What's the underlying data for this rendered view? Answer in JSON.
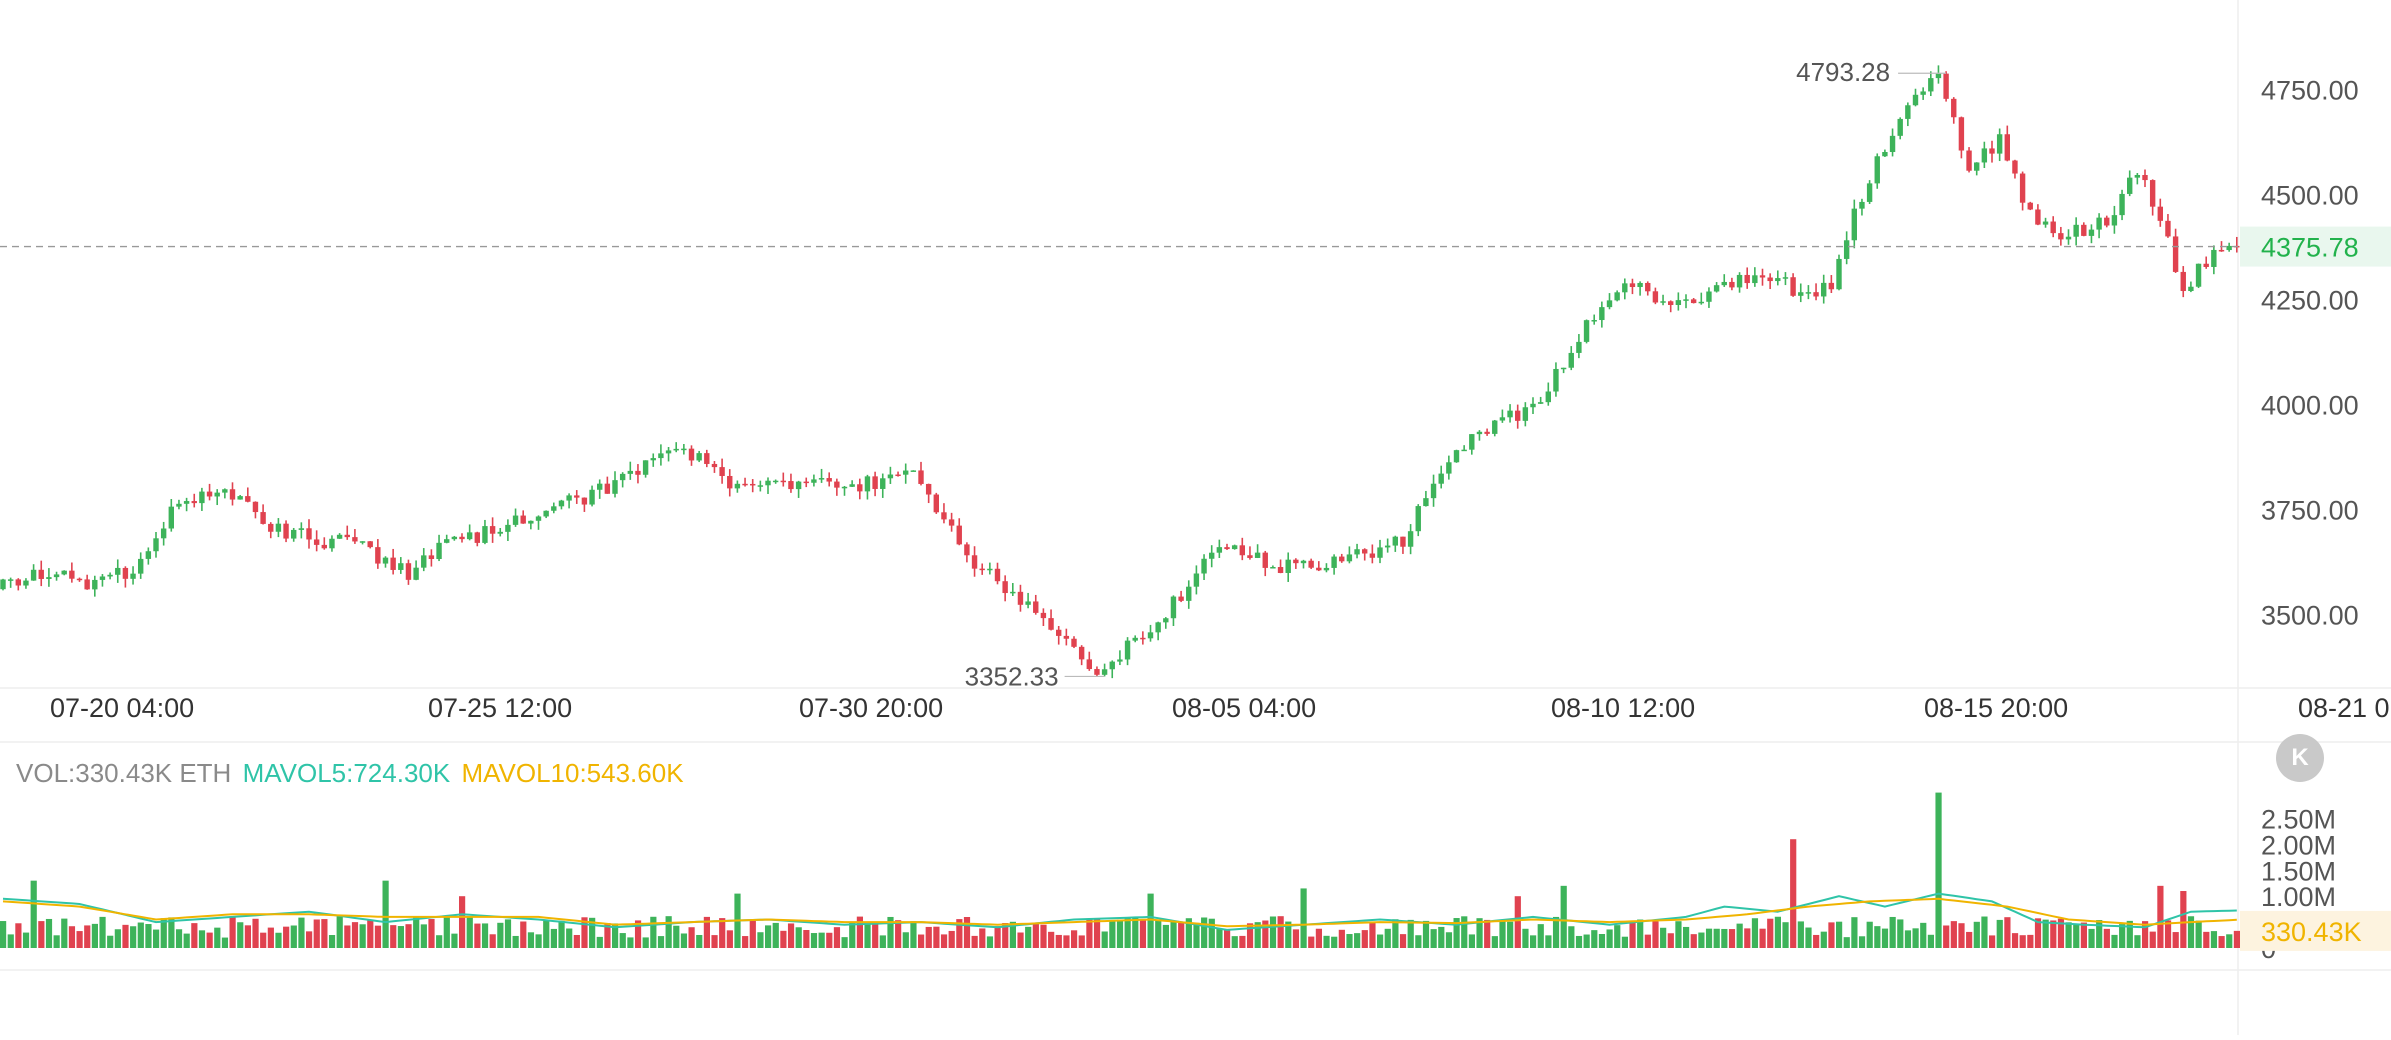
{
  "chart_data": [
    {
      "type": "candlestick",
      "title": "",
      "symbol_unit": "ETH",
      "y_ticks": [
        "4750.00",
        "4500.00",
        "4250.00",
        "4000.00",
        "3750.00",
        "3500.00"
      ],
      "y_tick_values": [
        4750,
        4500,
        4250,
        4000,
        3750,
        3500
      ],
      "ylim": [
        3320,
        4820
      ],
      "x_ticks": [
        "07-20 04:00",
        "07-25 12:00",
        "07-30 20:00",
        "08-05 04:00",
        "08-10 12:00",
        "08-15 20:00",
        "08-21 0"
      ],
      "last_price": 4375.78,
      "last_price_label": "4375.78",
      "high_label": "4793.28",
      "low_label": "3352.33",
      "colors": {
        "up": "#3db35a",
        "down": "#e0424f",
        "last_price": "#22b24c"
      },
      "waypoints": [
        [
          0,
          3560
        ],
        [
          6,
          3600
        ],
        [
          12,
          3570
        ],
        [
          18,
          3610
        ],
        [
          24,
          3770
        ],
        [
          30,
          3790
        ],
        [
          36,
          3710
        ],
        [
          42,
          3680
        ],
        [
          48,
          3660
        ],
        [
          54,
          3600
        ],
        [
          60,
          3680
        ],
        [
          66,
          3700
        ],
        [
          72,
          3760
        ],
        [
          78,
          3780
        ],
        [
          84,
          3850
        ],
        [
          90,
          3890
        ],
        [
          96,
          3820
        ],
        [
          102,
          3800
        ],
        [
          108,
          3820
        ],
        [
          114,
          3810
        ],
        [
          120,
          3850
        ],
        [
          126,
          3660
        ],
        [
          132,
          3560
        ],
        [
          138,
          3470
        ],
        [
          144,
          3360
        ],
        [
          150,
          3450
        ],
        [
          156,
          3560
        ],
        [
          160,
          3680
        ],
        [
          166,
          3620
        ],
        [
          172,
          3610
        ],
        [
          178,
          3640
        ],
        [
          184,
          3680
        ],
        [
          190,
          3870
        ],
        [
          196,
          3950
        ],
        [
          202,
          4000
        ],
        [
          208,
          4200
        ],
        [
          214,
          4290
        ],
        [
          220,
          4230
        ],
        [
          226,
          4290
        ],
        [
          232,
          4310
        ],
        [
          236,
          4260
        ],
        [
          240,
          4290
        ],
        [
          244,
          4500
        ],
        [
          250,
          4720
        ],
        [
          254,
          4780
        ],
        [
          258,
          4550
        ],
        [
          262,
          4630
        ],
        [
          266,
          4450
        ],
        [
          270,
          4400
        ],
        [
          276,
          4430
        ],
        [
          280,
          4560
        ],
        [
          283,
          4440
        ],
        [
          286,
          4270
        ],
        [
          290,
          4360
        ],
        [
          292,
          4376
        ]
      ],
      "highs_marked": {
        "index": 254,
        "value": 4793.28
      },
      "lows_marked": {
        "index": 144,
        "value": 3352.33
      }
    },
    {
      "type": "bar",
      "title": "",
      "legend": [
        {
          "label": "VOL:330.43K ETH",
          "color": "#8a8a8a"
        },
        {
          "label": "MAVOL5:724.30K",
          "color": "#2fc4a8"
        },
        {
          "label": "MAVOL10:543.60K",
          "color": "#f0b400"
        }
      ],
      "y_ticks": [
        "2.50M",
        "2.00M",
        "1.50M",
        "1.00M",
        "0"
      ],
      "y_tick_values": [
        2500000,
        2000000,
        1500000,
        1000000,
        0
      ],
      "ylim": [
        0,
        3050000
      ],
      "last_volume_label": "330.43K",
      "spikes": [
        [
          4,
          1300000
        ],
        [
          50,
          1300000
        ],
        [
          60,
          1000000
        ],
        [
          96,
          1050000
        ],
        [
          150,
          1050000
        ],
        [
          170,
          1150000
        ],
        [
          198,
          1000000
        ],
        [
          204,
          1200000
        ],
        [
          234,
          2100000
        ],
        [
          253,
          3000000
        ],
        [
          282,
          1200000
        ],
        [
          285,
          1100000
        ]
      ],
      "mavol5": [
        [
          0,
          950000
        ],
        [
          10,
          850000
        ],
        [
          20,
          500000
        ],
        [
          30,
          600000
        ],
        [
          40,
          700000
        ],
        [
          50,
          500000
        ],
        [
          60,
          650000
        ],
        [
          70,
          550000
        ],
        [
          80,
          400000
        ],
        [
          90,
          500000
        ],
        [
          100,
          550000
        ],
        [
          110,
          450000
        ],
        [
          120,
          500000
        ],
        [
          130,
          400000
        ],
        [
          140,
          550000
        ],
        [
          150,
          600000
        ],
        [
          160,
          350000
        ],
        [
          170,
          450000
        ],
        [
          180,
          550000
        ],
        [
          190,
          450000
        ],
        [
          200,
          600000
        ],
        [
          210,
          450000
        ],
        [
          220,
          600000
        ],
        [
          225,
          800000
        ],
        [
          232,
          700000
        ],
        [
          240,
          1000000
        ],
        [
          246,
          800000
        ],
        [
          253,
          1050000
        ],
        [
          260,
          900000
        ],
        [
          266,
          500000
        ],
        [
          272,
          450000
        ],
        [
          280,
          400000
        ],
        [
          286,
          700000
        ],
        [
          292,
          724300
        ]
      ],
      "mavol10": [
        [
          0,
          900000
        ],
        [
          10,
          800000
        ],
        [
          20,
          550000
        ],
        [
          30,
          650000
        ],
        [
          40,
          650000
        ],
        [
          50,
          600000
        ],
        [
          60,
          600000
        ],
        [
          70,
          600000
        ],
        [
          80,
          450000
        ],
        [
          90,
          500000
        ],
        [
          100,
          550000
        ],
        [
          110,
          500000
        ],
        [
          120,
          500000
        ],
        [
          130,
          450000
        ],
        [
          140,
          500000
        ],
        [
          150,
          550000
        ],
        [
          160,
          420000
        ],
        [
          170,
          450000
        ],
        [
          180,
          500000
        ],
        [
          190,
          480000
        ],
        [
          200,
          550000
        ],
        [
          210,
          500000
        ],
        [
          220,
          550000
        ],
        [
          228,
          650000
        ],
        [
          236,
          800000
        ],
        [
          244,
          900000
        ],
        [
          253,
          950000
        ],
        [
          262,
          800000
        ],
        [
          270,
          550000
        ],
        [
          280,
          450000
        ],
        [
          286,
          500000
        ],
        [
          292,
          543600
        ]
      ]
    }
  ]
}
